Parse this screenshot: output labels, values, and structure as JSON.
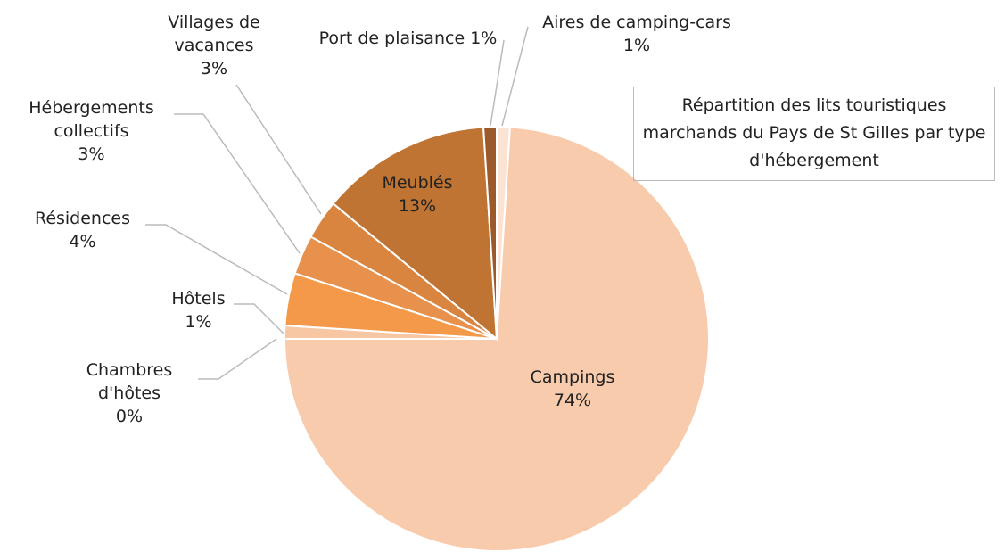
{
  "chart_data": {
    "type": "pie",
    "title": "Répartition des lits touristiques marchands du Pays de St Gilles par type d'hébergement",
    "categories": [
      "Aires de camping-cars",
      "Campings",
      "Chambres d'hôtes",
      "Hôtels",
      "Résidences",
      "Hébergements collectifs",
      "Villages de vacances",
      "Meublés",
      "Port de plaisance"
    ],
    "values": [
      1,
      74,
      0,
      1,
      4,
      3,
      3,
      13,
      1
    ],
    "value_labels": [
      "1%",
      "74%",
      "0%",
      "1%",
      "4%",
      "3%",
      "3%",
      "13%",
      "1%"
    ],
    "colors": [
      "#fbe3d3",
      "#f8cbad",
      "#fdeee4",
      "#f7c7a4",
      "#f4994a",
      "#e8914d",
      "#d9853f",
      "#c07433",
      "#9c5a2c"
    ]
  }
}
